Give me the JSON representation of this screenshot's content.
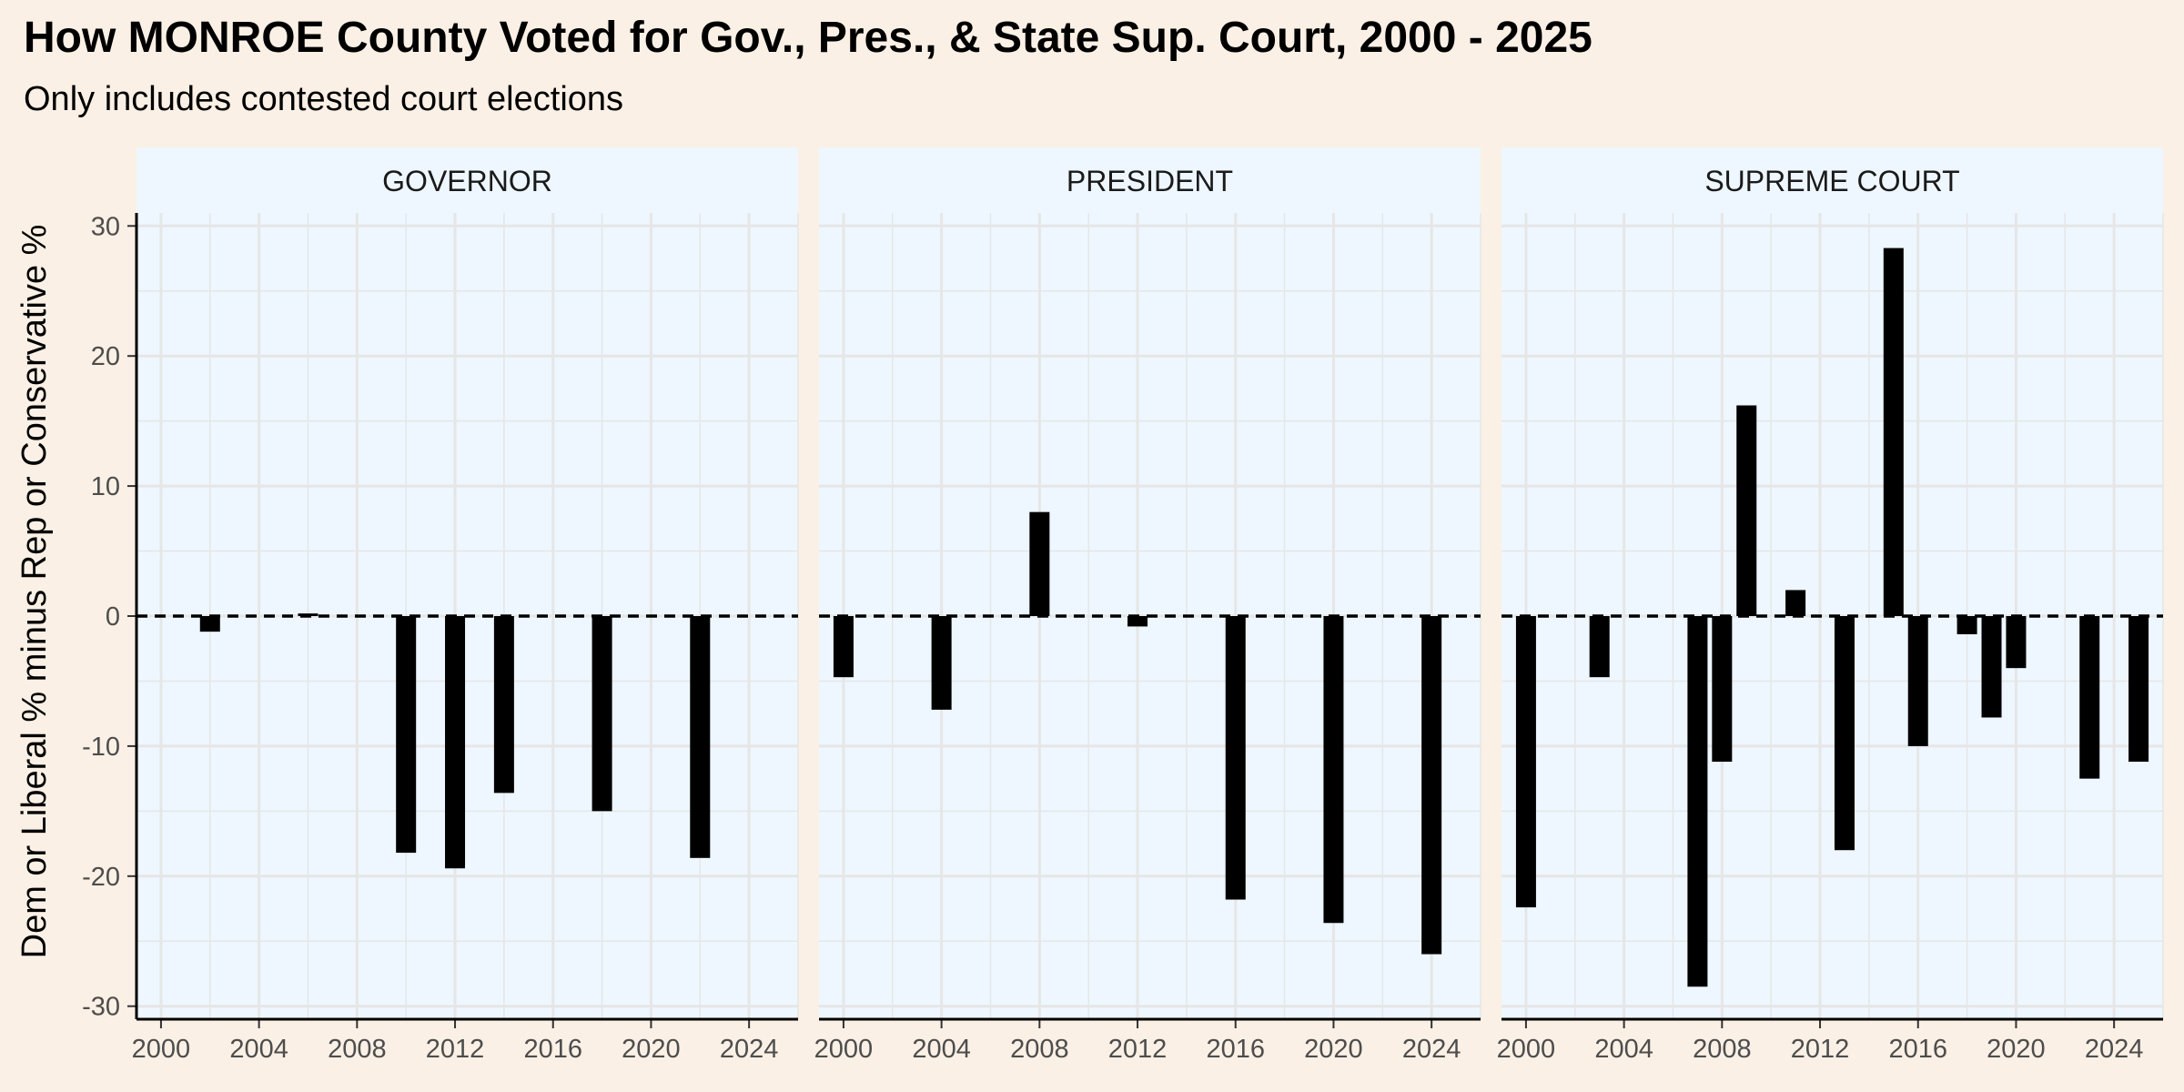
{
  "title": "How MONROE County Voted for Gov., Pres., & State Sup. Court, 2000 - 2025",
  "subtitle": "Only includes contested court elections",
  "colors": {
    "page_background": "#fbf0e5",
    "panel_background": "#eef7ff",
    "bar": "#000000",
    "grid": "#e6e6e6",
    "zero_line": "#000000"
  },
  "chart_data": {
    "type": "bar",
    "ylabel": "Dem or Liberal % minus Rep or Conservative %",
    "xlabel": "",
    "xlim": [
      1999,
      2026
    ],
    "ylim": [
      -31,
      31
    ],
    "x_ticks": [
      2000,
      2004,
      2008,
      2012,
      2016,
      2020,
      2024
    ],
    "y_ticks": [
      30,
      20,
      10,
      0,
      -10,
      -20,
      -30
    ],
    "reference_line": {
      "y": 0,
      "style": "dashed"
    },
    "grid": true,
    "legend": "none",
    "panels": [
      {
        "label": "GOVERNOR",
        "x": [
          2002,
          2006,
          2010,
          2012,
          2014,
          2018,
          2022
        ],
        "values": [
          -1.2,
          0.2,
          -18.2,
          -19.4,
          -13.6,
          -15.0,
          -18.6
        ]
      },
      {
        "label": "PRESIDENT",
        "x": [
          2000,
          2004,
          2008,
          2012,
          2016,
          2020,
          2024
        ],
        "values": [
          -4.7,
          -7.2,
          8.0,
          -0.8,
          -21.8,
          -23.6,
          -26.0
        ]
      },
      {
        "label": "SUPREME COURT",
        "x": [
          2000,
          2003,
          2007,
          2008,
          2009,
          2011,
          2013,
          2015,
          2016,
          2018,
          2019,
          2020,
          2023,
          2025
        ],
        "values": [
          -22.4,
          -4.7,
          -28.5,
          -11.2,
          16.2,
          2.0,
          -18.0,
          28.3,
          -10.0,
          -1.4,
          -7.8,
          -4.0,
          -12.5,
          -11.2
        ]
      }
    ]
  }
}
